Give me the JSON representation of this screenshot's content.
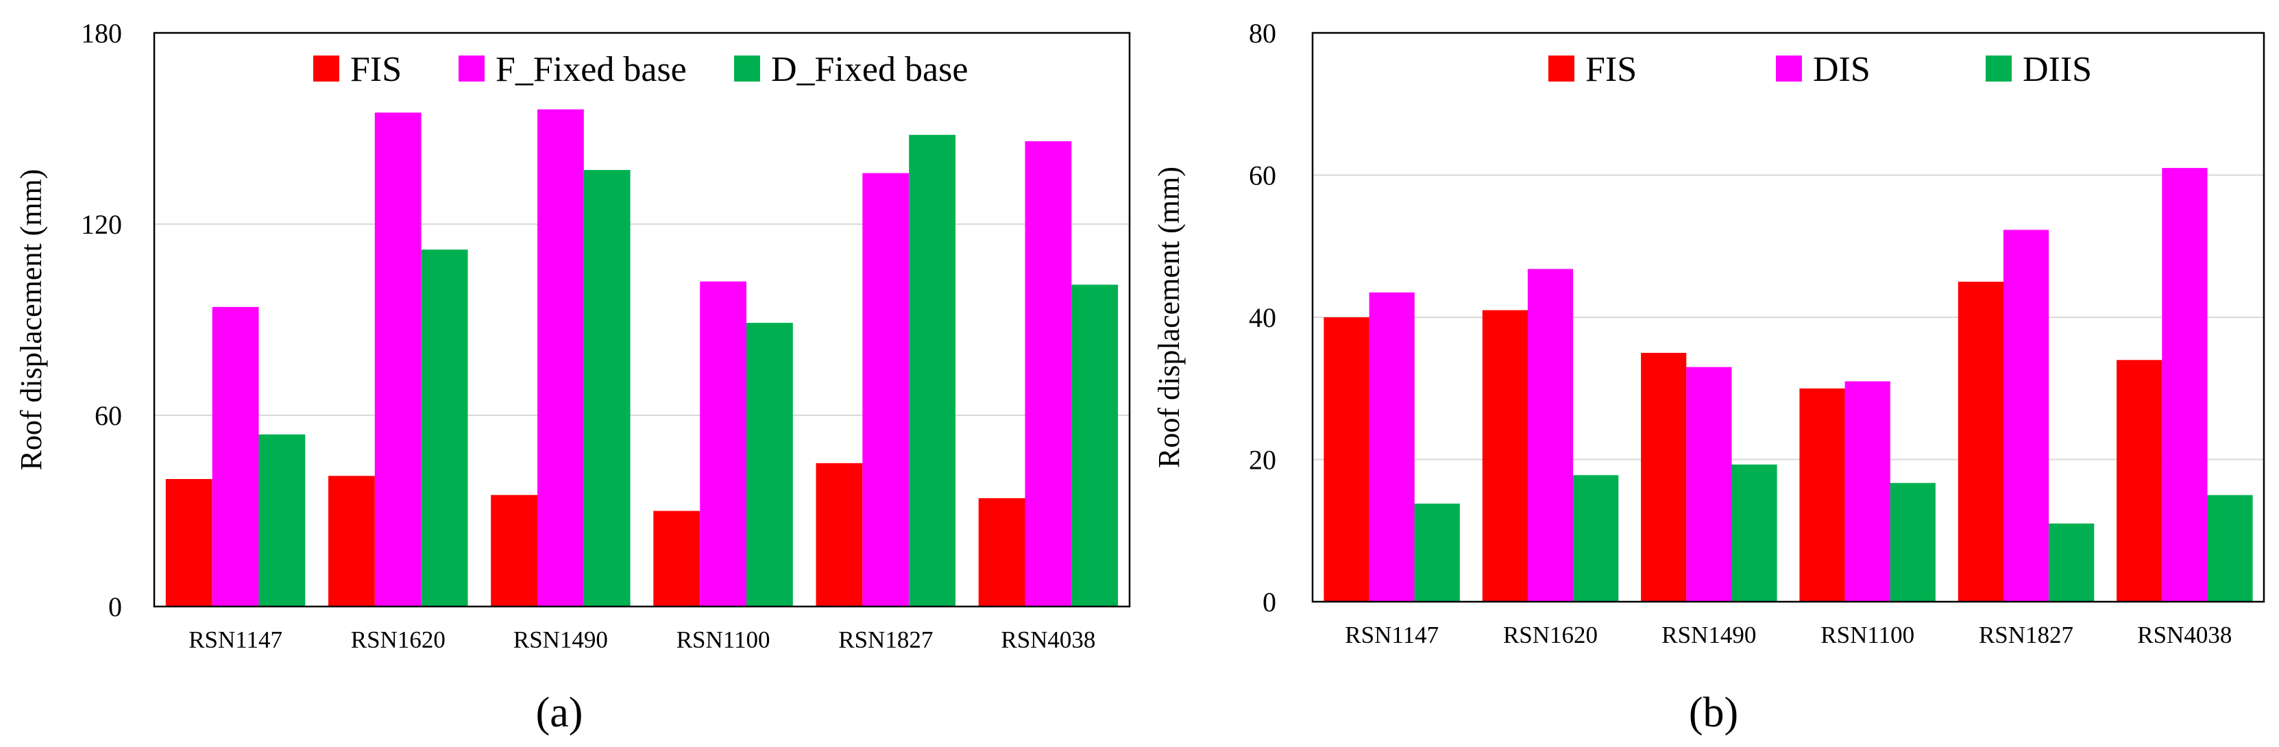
{
  "chart_data": [
    {
      "id": "a",
      "type": "bar",
      "title": "",
      "caption": "(a)",
      "xlabel": "",
      "ylabel": "Roof displacement (mm)",
      "ylim": [
        0,
        180
      ],
      "yticks": [
        "0",
        "60",
        "120",
        "180"
      ],
      "grid": true,
      "legend_position": "top-right",
      "categories": [
        "RSN1147",
        "RSN1620",
        "RSN1490",
        "RSN1100",
        "RSN1827",
        "RSN4038"
      ],
      "series": [
        {
          "name": "FIS",
          "color": "#ff0000",
          "values": [
            40,
            41,
            35,
            30,
            45,
            34
          ]
        },
        {
          "name": "F_Fixed base",
          "color": "#ff00ff",
          "values": [
            94,
            155,
            156,
            102,
            136,
            146
          ]
        },
        {
          "name": "D_Fixed base",
          "color": "#00b050",
          "values": [
            54,
            112,
            137,
            89,
            148,
            101
          ]
        }
      ]
    },
    {
      "id": "b",
      "type": "bar",
      "title": "",
      "caption": "(b)",
      "xlabel": "",
      "ylabel": "Roof displacement (mm)",
      "ylim": [
        0,
        80
      ],
      "yticks": [
        "0",
        "20",
        "40",
        "60",
        "80"
      ],
      "grid": true,
      "legend_position": "top-right",
      "categories": [
        "RSN1147",
        "RSN1620",
        "RSN1490",
        "RSN1100",
        "RSN1827",
        "RSN4038"
      ],
      "series": [
        {
          "name": "FIS",
          "color": "#ff0000",
          "values": [
            40,
            41,
            35,
            30,
            45,
            34
          ]
        },
        {
          "name": "DIS",
          "color": "#ff00ff",
          "values": [
            43.5,
            46.8,
            33,
            31,
            52.3,
            61
          ]
        },
        {
          "name": "DIIS",
          "color": "#00b050",
          "values": [
            13.8,
            17.8,
            19.3,
            16.7,
            11,
            15
          ]
        }
      ]
    }
  ]
}
